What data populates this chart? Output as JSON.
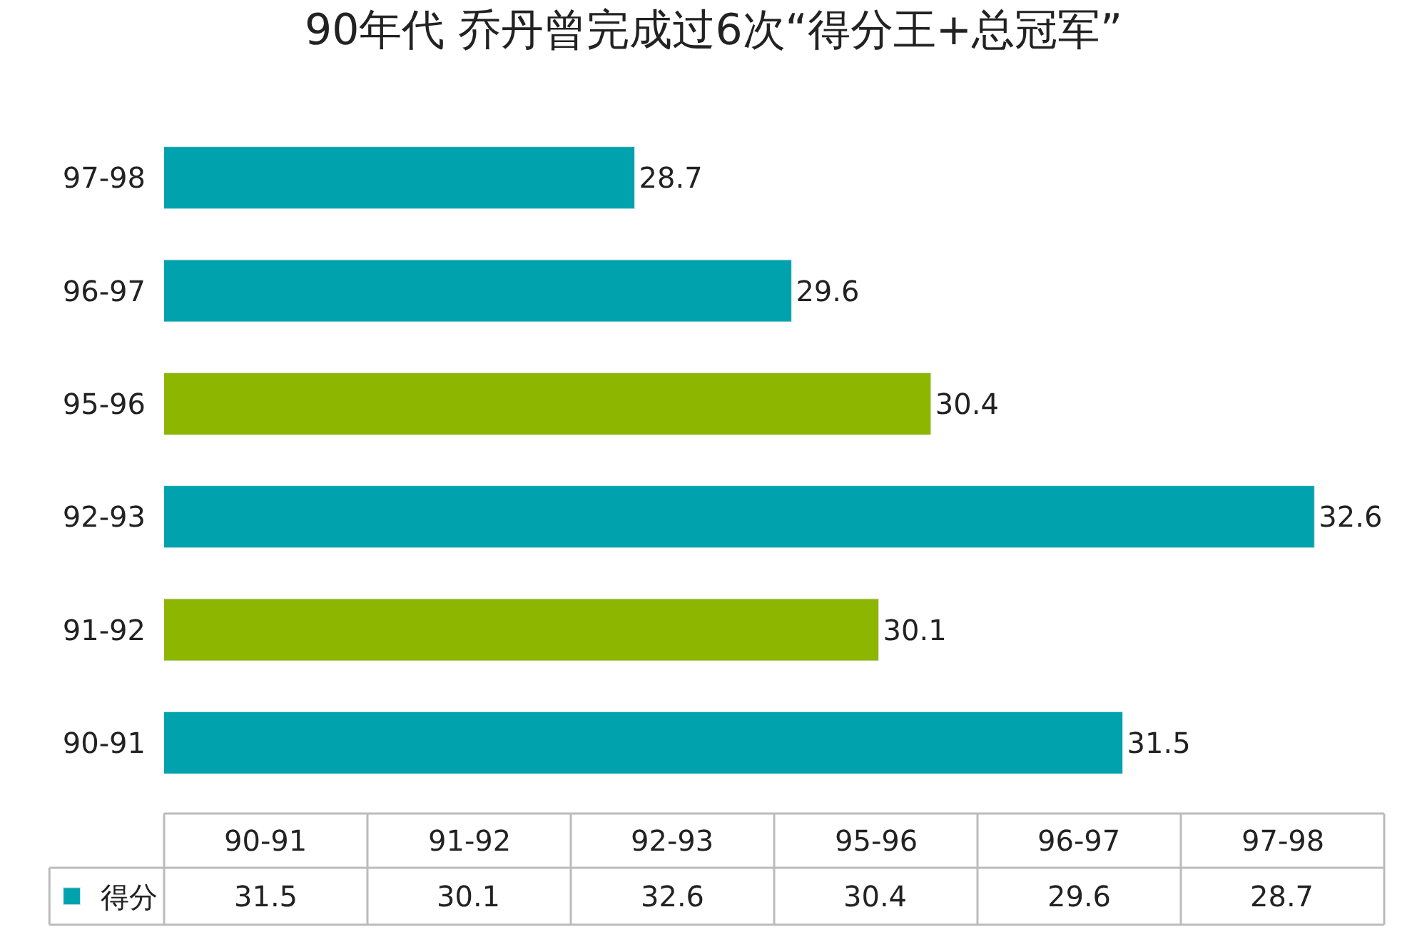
{
  "chart_data": {
    "type": "bar",
    "orientation": "horizontal",
    "title": "90年代 乔丹曾完成过6次“得分王+总冠军”",
    "categories": [
      "97-98",
      "96-97",
      "95-96",
      "92-93",
      "91-92",
      "90-91"
    ],
    "series": [
      {
        "name": "得分",
        "color": "#00a3ad",
        "colors": [
          "#00a3ad",
          "#00a3ad",
          "#8db600",
          "#00a3ad",
          "#8db600",
          "#00a3ad"
        ],
        "values": [
          28.7,
          29.6,
          30.4,
          32.6,
          30.1,
          31.5
        ]
      }
    ],
    "value_labels": [
      "28.7",
      "29.6",
      "30.4",
      "32.6",
      "30.1",
      "31.5"
    ],
    "xlim": [
      26,
      33
    ],
    "tick_labels": "y",
    "data_labels": true,
    "legend": "bottom left"
  }
}
